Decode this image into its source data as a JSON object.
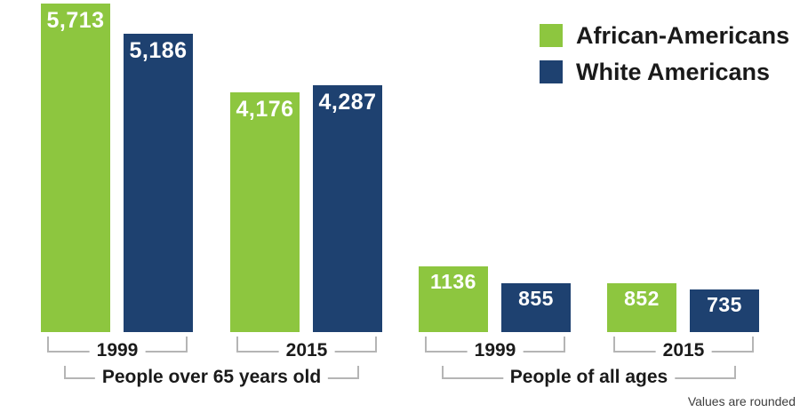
{
  "chart_data": {
    "type": "bar",
    "title": "",
    "legend_position": "top-right",
    "grid": false,
    "axes": "hidden",
    "value_axis_max": 5713,
    "series": [
      {
        "name": "African-Americans",
        "color": "#8dc63f"
      },
      {
        "name": "White Americans",
        "color": "#1e4170"
      }
    ],
    "sections": [
      {
        "label": "People over 65 years old",
        "groups": [
          {
            "year": "1999",
            "values": [
              5713,
              5186
            ],
            "value_labels": [
              "5,713",
              "5,186"
            ]
          },
          {
            "year": "2015",
            "values": [
              4176,
              4287
            ],
            "value_labels": [
              "4,176",
              "4,287"
            ]
          }
        ]
      },
      {
        "label": "People of all ages",
        "groups": [
          {
            "year": "1999",
            "values": [
              1136,
              855
            ],
            "value_labels": [
              "1136",
              "855"
            ]
          },
          {
            "year": "2015",
            "values": [
              852,
              735
            ],
            "value_labels": [
              "852",
              "735"
            ]
          }
        ]
      }
    ],
    "footnote": "Values are rounded"
  }
}
